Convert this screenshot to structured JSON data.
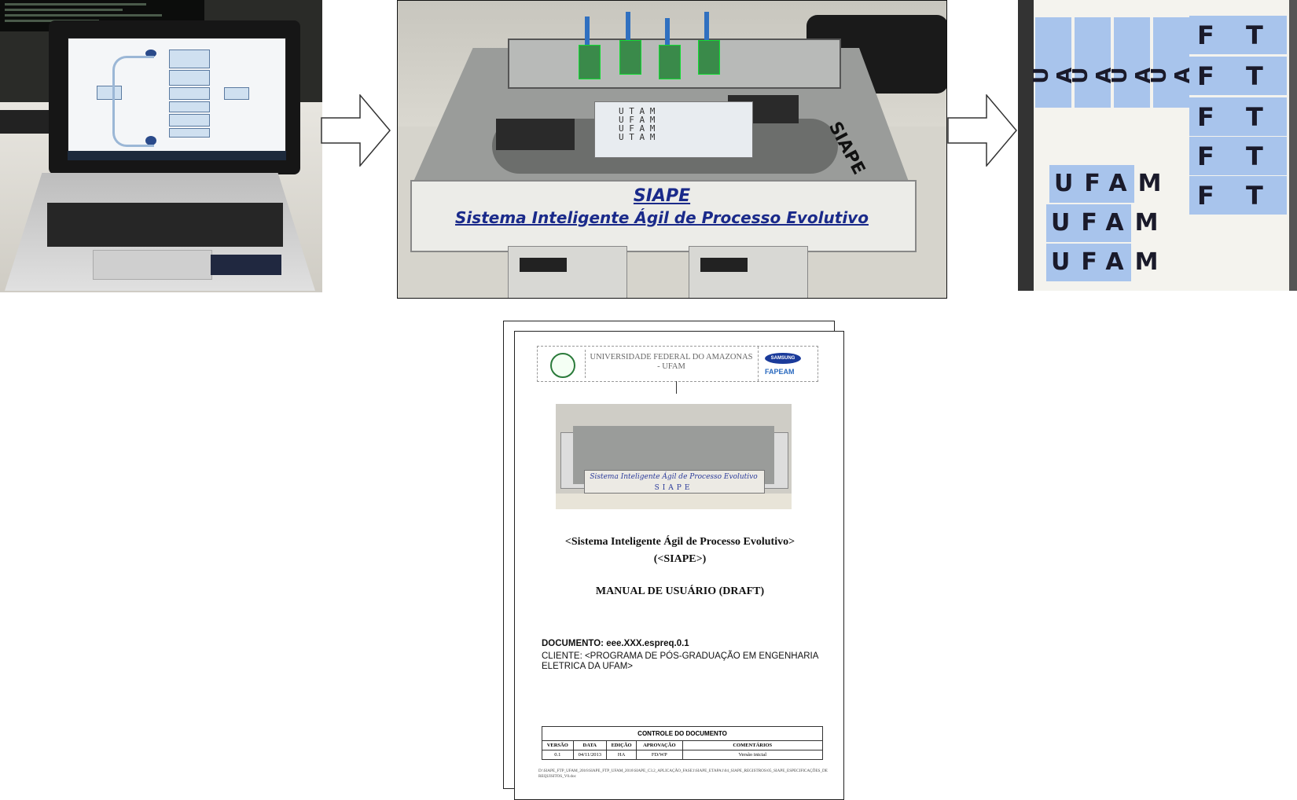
{
  "machine_panel": {
    "plate_title": "SIAPE",
    "plate_subtitle": "Sistema Inteligente Ágil de Processo Evolutivo",
    "side_label": "SIAPE",
    "tray_rows": [
      "U T A M",
      "U F A M",
      "U F A M",
      "U T A M"
    ]
  },
  "labels_panel": {
    "vertical_tiles": [
      "U A",
      "U A",
      "U A",
      "U A"
    ],
    "ft_tiles": [
      [
        "F",
        "T"
      ],
      [
        "F",
        "T"
      ],
      [
        "F",
        "T"
      ],
      [
        "F",
        "T"
      ],
      [
        "F",
        "T"
      ]
    ],
    "ufam_tiles": [
      "UFAM",
      "UFAM",
      "UFAM"
    ]
  },
  "document": {
    "university_line1": "UNIVERSIDADE FEDERAL DO AMAZONAS",
    "university_line2": "- UFAM",
    "brand1": "SAMSUNG",
    "brand2": "FAPEAM",
    "photo_text": "Sistema Inteligente Ágil de Processo Evolutivo",
    "photo_text2": "SIAPE",
    "title": "<Sistema Inteligente Ágil de Processo Evolutivo>",
    "subtitle": "(<SIAPE>)",
    "manual": "MANUAL DE USUÁRIO (DRAFT)",
    "documento": "DOCUMENTO: eee.XXX.espreq.0.1",
    "cliente_line1": "CLIENTE: <PROGRAMA DE PÓS-GRADUAÇÃO EM ENGENHARIA",
    "cliente_line2": "ELETRICA DA UFAM>",
    "control_title": "CONTROLE DO DOCUMENTO",
    "control_headers": [
      "VERSÃO",
      "DATA",
      "EDIÇÃO",
      "APROVAÇÃO",
      "COMENTÁRIOS"
    ],
    "control_row": [
      "0.1",
      "04/11/2013",
      "HA",
      "FD/WP",
      "Versão inicial"
    ],
    "file_path": "D:\\SIAPE_FTP_UFAM_2016\\SIAPE_FTP_UFAM_2016\\SIAPE_C3.2_APLICAÇÃO_FASE1\\SIAPE_ETAPA1\\04_SIAPE_REGISTROS\\05_SIAPE_ESPECIFICAÇÕES_DE REQUISITOS_V0.doc"
  },
  "colors": {
    "plate_text": "#1a2a8a",
    "label_tiles": "#a8c4ec",
    "valves": "#3a8a4a"
  }
}
